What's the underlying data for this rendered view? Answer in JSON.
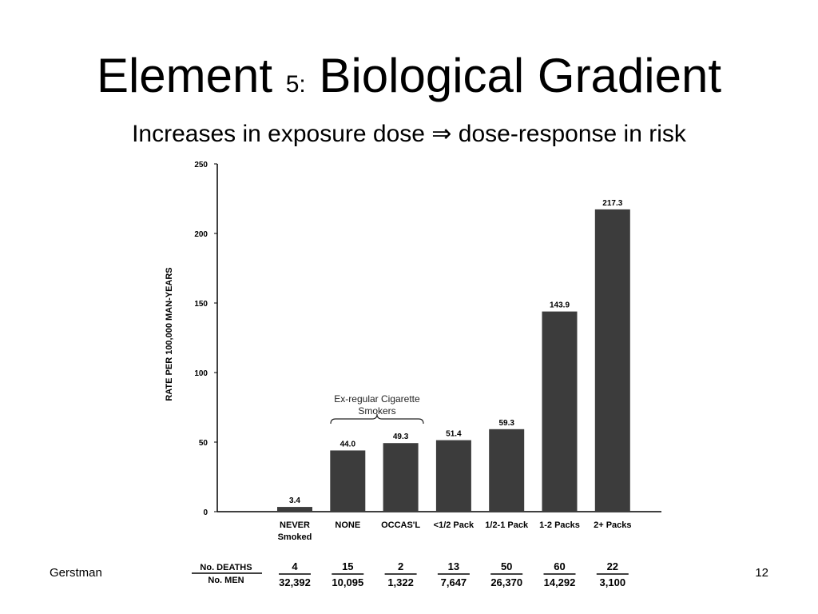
{
  "slide": {
    "title": [
      "Element",
      "5:",
      "Biological Gradient"
    ],
    "subtitle": "Increases in exposure dose ⇒  dose-response in risk",
    "footer_left": "Gerstman",
    "footer_right": "12"
  },
  "chart_data": {
    "type": "bar",
    "categories": [
      "NEVER Smoked",
      "NONE",
      "OCCAS'L",
      "<1/2 Pack",
      "1/2-1 Pack",
      "1-2 Packs",
      "2+ Packs"
    ],
    "values": [
      3.4,
      44.0,
      49.3,
      51.4,
      59.3,
      143.9,
      217.3
    ],
    "value_labels": [
      "3.4",
      "44.0",
      "49.3",
      "51.4",
      "59.3",
      "143.9",
      "217.3"
    ],
    "color": "#3c3c3c",
    "ylabel": "RATE PER 100,000 MAN-YEARS",
    "ylim": [
      0,
      250
    ],
    "yticks": [
      0,
      50,
      100,
      150,
      200,
      250
    ],
    "annotation": "Ex-regular Cigarette Smokers",
    "table": {
      "row_labels": [
        "No. DEATHS",
        "No. MEN"
      ],
      "deaths": [
        4,
        15,
        2,
        13,
        50,
        60,
        22
      ],
      "men": [
        "32,392",
        "10,095",
        "1,322",
        "7,647",
        "26,370",
        "14,292",
        "3,100"
      ]
    }
  }
}
